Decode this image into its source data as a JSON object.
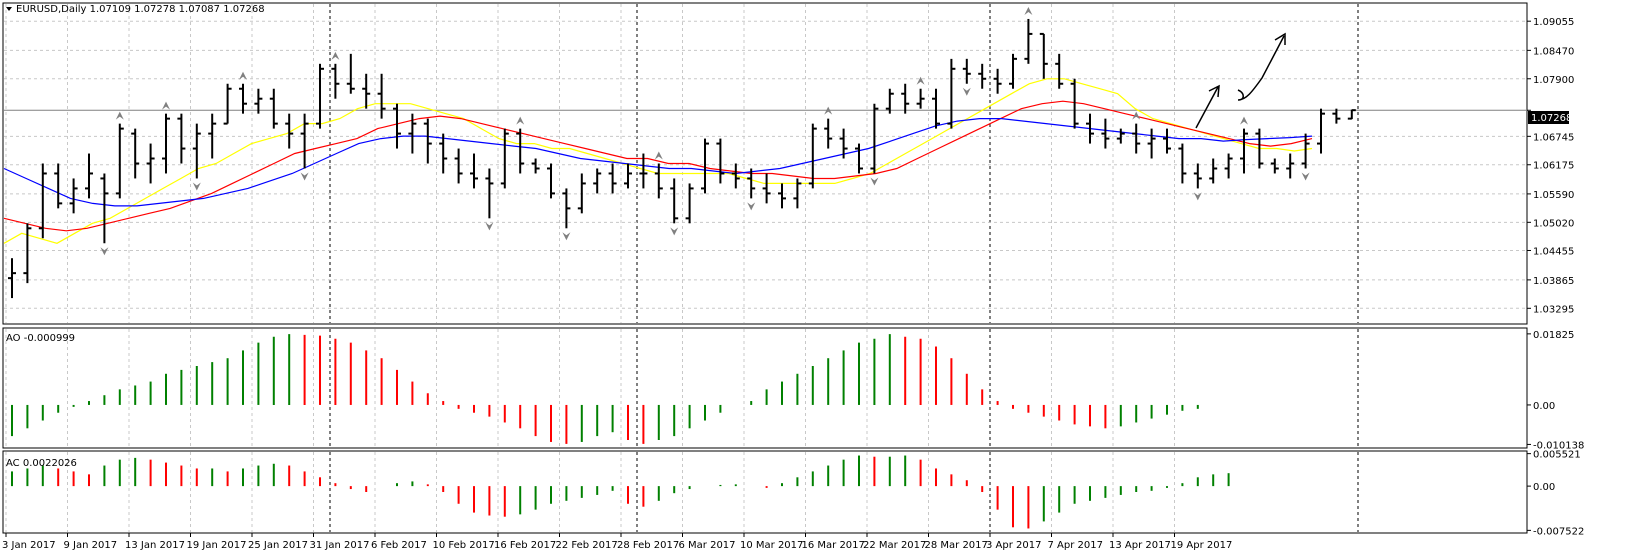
{
  "window": {
    "symbol_line": "EURUSD,Daily  1.07109 1.07278 1.07087 1.07268",
    "current_price_label": "1.07268",
    "current_price": 1.07268
  },
  "colors": {
    "background": "#ffffff",
    "grid": "#c8c8c8",
    "axis": "#000000",
    "bar_up": "#000000",
    "bar_down": "#000000",
    "osc_up": "#008000",
    "osc_down": "#ff0000",
    "ma_yellow": "#ffff00",
    "ma_red": "#ff0000",
    "ma_blue": "#0000ff",
    "fractal": "#808080",
    "price_label_bg": "#000000",
    "price_label_text": "#ffffff"
  },
  "chart_data": [
    {
      "type": "ohlc",
      "name": "price",
      "y_ticks": [
        "1.09055",
        "1.08470",
        "1.07900",
        "1.07268",
        "1.06745",
        "1.06175",
        "1.05590",
        "1.05020",
        "1.04455",
        "1.03865",
        "1.03295"
      ],
      "ylim": [
        1.03,
        1.094
      ],
      "x_labels": [
        "3 Jan 2017",
        "9 Jan 2017",
        "13 Jan 2017",
        "19 Jan 2017",
        "25 Jan 2017",
        "31 Jan 2017",
        "6 Feb 2017",
        "10 Feb 2017",
        "16 Feb 2017",
        "22 Feb 2017",
        "28 Feb 2017",
        "6 Mar 2017",
        "10 Mar 2017",
        "16 Mar 2017",
        "22 Mar 2017",
        "28 Mar 2017",
        "3 Apr 2017",
        "7 Apr 2017",
        "13 Apr 2017",
        "19 Apr 2017"
      ],
      "bars": [
        [
          1.039,
          1.043,
          1.035,
          1.04
        ],
        [
          1.04,
          1.05,
          1.038,
          1.049
        ],
        [
          1.049,
          1.062,
          1.047,
          1.06
        ],
        [
          1.06,
          1.062,
          1.053,
          1.054
        ],
        [
          1.054,
          1.059,
          1.052,
          1.057
        ],
        [
          1.057,
          1.064,
          1.055,
          1.06
        ],
        [
          1.059,
          1.06,
          1.046,
          1.056
        ],
        [
          1.056,
          1.07,
          1.055,
          1.069
        ],
        [
          1.068,
          1.069,
          1.059,
          1.062
        ],
        [
          1.062,
          1.066,
          1.058,
          1.063
        ],
        [
          1.063,
          1.072,
          1.06,
          1.071
        ],
        [
          1.071,
          1.072,
          1.062,
          1.065
        ],
        [
          1.065,
          1.07,
          1.059,
          1.068
        ],
        [
          1.068,
          1.072,
          1.063,
          1.07
        ],
        [
          1.07,
          1.078,
          1.07,
          1.077
        ],
        [
          1.077,
          1.078,
          1.072,
          1.074
        ],
        [
          1.074,
          1.077,
          1.072,
          1.075
        ],
        [
          1.075,
          1.077,
          1.069,
          1.07
        ],
        [
          1.07,
          1.072,
          1.065,
          1.068
        ],
        [
          1.068,
          1.072,
          1.061,
          1.07
        ],
        [
          1.07,
          1.082,
          1.069,
          1.081
        ],
        [
          1.081,
          1.082,
          1.075,
          1.078
        ],
        [
          1.078,
          1.084,
          1.076,
          1.077
        ],
        [
          1.077,
          1.08,
          1.073,
          1.076
        ],
        [
          1.076,
          1.08,
          1.071,
          1.073
        ],
        [
          1.073,
          1.074,
          1.065,
          1.068
        ],
        [
          1.068,
          1.072,
          1.064,
          1.07
        ],
        [
          1.07,
          1.071,
          1.062,
          1.066
        ],
        [
          1.066,
          1.068,
          1.06,
          1.063
        ],
        [
          1.063,
          1.065,
          1.058,
          1.06
        ],
        [
          1.06,
          1.064,
          1.057,
          1.059
        ],
        [
          1.059,
          1.061,
          1.051,
          1.058
        ],
        [
          1.058,
          1.069,
          1.057,
          1.068
        ],
        [
          1.068,
          1.069,
          1.06,
          1.062
        ],
        [
          1.062,
          1.063,
          1.06,
          1.061
        ],
        [
          1.061,
          1.062,
          1.055,
          1.056
        ],
        [
          1.056,
          1.057,
          1.049,
          1.053
        ],
        [
          1.053,
          1.06,
          1.052,
          1.058
        ],
        [
          1.058,
          1.061,
          1.056,
          1.06
        ],
        [
          1.06,
          1.062,
          1.056,
          1.058
        ],
        [
          1.058,
          1.062,
          1.057,
          1.06
        ],
        [
          1.06,
          1.064,
          1.057,
          1.06
        ],
        [
          1.06,
          1.062,
          1.055,
          1.057
        ],
        [
          1.057,
          1.059,
          1.05,
          1.051
        ],
        [
          1.051,
          1.058,
          1.05,
          1.057
        ],
        [
          1.057,
          1.067,
          1.056,
          1.066
        ],
        [
          1.066,
          1.067,
          1.058,
          1.06
        ],
        [
          1.06,
          1.062,
          1.057,
          1.059
        ],
        [
          1.059,
          1.061,
          1.055,
          1.057
        ],
        [
          1.057,
          1.06,
          1.054,
          1.056
        ],
        [
          1.056,
          1.058,
          1.053,
          1.055
        ],
        [
          1.055,
          1.059,
          1.053,
          1.058
        ],
        [
          1.058,
          1.07,
          1.057,
          1.069
        ],
        [
          1.069,
          1.071,
          1.065,
          1.067
        ],
        [
          1.067,
          1.069,
          1.063,
          1.065
        ],
        [
          1.065,
          1.066,
          1.06,
          1.061
        ],
        [
          1.061,
          1.074,
          1.06,
          1.073
        ],
        [
          1.073,
          1.077,
          1.072,
          1.076
        ],
        [
          1.076,
          1.078,
          1.072,
          1.074
        ],
        [
          1.074,
          1.077,
          1.073,
          1.075
        ],
        [
          1.075,
          1.077,
          1.069,
          1.07
        ],
        [
          1.07,
          1.083,
          1.069,
          1.081
        ],
        [
          1.081,
          1.083,
          1.078,
          1.08
        ],
        [
          1.08,
          1.082,
          1.077,
          1.079
        ],
        [
          1.079,
          1.081,
          1.076,
          1.078
        ],
        [
          1.078,
          1.084,
          1.077,
          1.083
        ],
        [
          1.083,
          1.091,
          1.082,
          1.088
        ],
        [
          1.088,
          1.088,
          1.079,
          1.082
        ],
        [
          1.082,
          1.084,
          1.077,
          1.078
        ],
        [
          1.078,
          1.079,
          1.069,
          1.07
        ],
        [
          1.07,
          1.072,
          1.066,
          1.068
        ],
        [
          1.068,
          1.071,
          1.065,
          1.067
        ],
        [
          1.067,
          1.069,
          1.066,
          1.068
        ],
        [
          1.068,
          1.07,
          1.064,
          1.066
        ],
        [
          1.066,
          1.069,
          1.063,
          1.067
        ],
        [
          1.067,
          1.069,
          1.064,
          1.065
        ],
        [
          1.065,
          1.066,
          1.058,
          1.06
        ],
        [
          1.06,
          1.062,
          1.057,
          1.059
        ],
        [
          1.059,
          1.063,
          1.058,
          1.061
        ],
        [
          1.061,
          1.064,
          1.059,
          1.063
        ],
        [
          1.063,
          1.069,
          1.06,
          1.068
        ],
        [
          1.068,
          1.069,
          1.061,
          1.062
        ],
        [
          1.062,
          1.063,
          1.06,
          1.061
        ],
        [
          1.061,
          1.064,
          1.059,
          1.062
        ],
        [
          1.062,
          1.068,
          1.061,
          1.066
        ],
        [
          1.066,
          1.073,
          1.064,
          1.072
        ],
        [
          1.072,
          1.073,
          1.07,
          1.071
        ],
        [
          1.071,
          1.0728,
          1.0709,
          1.0727
        ]
      ],
      "moving_averages": [
        {
          "color": "yellow",
          "values": [
            1.046,
            1.048,
            1.047,
            1.046,
            1.048,
            1.05,
            1.051,
            1.053,
            1.055,
            1.057,
            1.059,
            1.061,
            1.062,
            1.064,
            1.066,
            1.067,
            1.068,
            1.07,
            1.07,
            1.071,
            1.073,
            1.074,
            1.074,
            1.074,
            1.073,
            1.072,
            1.071,
            1.069,
            1.067,
            1.066,
            1.066,
            1.065,
            1.065,
            1.064,
            1.063,
            1.062,
            1.061,
            1.06,
            1.06,
            1.06,
            1.06,
            1.06,
            1.059,
            1.058,
            1.058,
            1.058,
            1.058,
            1.058,
            1.059,
            1.06,
            1.062,
            1.064,
            1.066,
            1.068,
            1.07,
            1.072,
            1.074,
            1.076,
            1.078,
            1.079,
            1.079,
            1.078,
            1.077,
            1.076,
            1.073,
            1.071,
            1.07,
            1.069,
            1.068,
            1.067,
            1.066,
            1.065,
            1.065,
            1.0645,
            1.065
          ]
        },
        {
          "color": "red",
          "values": [
            1.051,
            1.05,
            1.049,
            1.0485,
            1.049,
            1.05,
            1.051,
            1.052,
            1.053,
            1.0545,
            1.056,
            1.058,
            1.06,
            1.062,
            1.064,
            1.065,
            1.066,
            1.067,
            1.069,
            1.07,
            1.071,
            1.0715,
            1.071,
            1.07,
            1.069,
            1.068,
            1.067,
            1.066,
            1.065,
            1.064,
            1.063,
            1.063,
            1.062,
            1.062,
            1.061,
            1.0605,
            1.06,
            1.06,
            1.0595,
            1.059,
            1.059,
            1.0595,
            1.06,
            1.061,
            1.063,
            1.065,
            1.067,
            1.069,
            1.071,
            1.073,
            1.074,
            1.0745,
            1.074,
            1.073,
            1.072,
            1.071,
            1.07,
            1.069,
            1.068,
            1.067,
            1.066,
            1.0655,
            1.066,
            1.067
          ]
        },
        {
          "color": "blue",
          "values": [
            1.061,
            1.059,
            1.057,
            1.055,
            1.054,
            1.0535,
            1.0535,
            1.054,
            1.0545,
            1.055,
            1.056,
            1.057,
            1.0585,
            1.06,
            1.062,
            1.064,
            1.066,
            1.067,
            1.0675,
            1.0675,
            1.067,
            1.0665,
            1.066,
            1.0655,
            1.065,
            1.064,
            1.063,
            1.0625,
            1.062,
            1.0615,
            1.061,
            1.061,
            1.0605,
            1.06,
            1.0605,
            1.061,
            1.062,
            1.063,
            1.064,
            1.065,
            1.0665,
            1.068,
            1.0695,
            1.0705,
            1.071,
            1.071,
            1.0705,
            1.07,
            1.0695,
            1.069,
            1.0685,
            1.068,
            1.0675,
            1.067,
            1.067,
            1.0665,
            1.0668,
            1.067,
            1.0672,
            1.0675
          ]
        }
      ]
    },
    {
      "type": "bar",
      "name": "AO",
      "label": "AO -0.000999",
      "y_ticks": [
        "0.01825",
        "0.00",
        "-0.010138"
      ],
      "ylim": [
        -0.0108,
        0.0195
      ],
      "values": [
        -0.008,
        -0.006,
        -0.004,
        -0.002,
        -0.0005,
        0.001,
        0.0025,
        0.004,
        0.005,
        0.006,
        0.008,
        0.009,
        0.01,
        0.011,
        0.012,
        0.014,
        0.016,
        0.0175,
        0.0182,
        0.018,
        0.0178,
        0.017,
        0.016,
        0.014,
        0.012,
        0.009,
        0.006,
        0.003,
        0.001,
        -0.001,
        -0.002,
        -0.003,
        -0.0045,
        -0.006,
        -0.008,
        -0.0095,
        -0.01,
        -0.0095,
        -0.008,
        -0.007,
        -0.009,
        -0.01,
        -0.009,
        -0.008,
        -0.006,
        -0.004,
        -0.002,
        0.0,
        0.001,
        0.004,
        0.006,
        0.008,
        0.01,
        0.012,
        0.014,
        0.016,
        0.017,
        0.0182,
        0.0175,
        0.017,
        0.015,
        0.012,
        0.008,
        0.004,
        0.001,
        -0.001,
        -0.002,
        -0.003,
        -0.004,
        -0.005,
        -0.0055,
        -0.006,
        -0.0055,
        -0.0045,
        -0.0035,
        -0.0025,
        -0.0015,
        -0.001
      ]
    },
    {
      "type": "bar",
      "name": "AC",
      "label": "AC 0.0022026",
      "y_ticks": [
        "0.005521",
        "0.00",
        "-0.007522"
      ],
      "ylim": [
        -0.0078,
        0.0058
      ],
      "values": [
        0.0025,
        0.003,
        0.0035,
        0.003,
        0.0025,
        0.002,
        0.0035,
        0.0045,
        0.0048,
        0.0045,
        0.004,
        0.0035,
        0.003,
        0.003,
        0.0025,
        0.003,
        0.0035,
        0.0038,
        0.0035,
        0.0025,
        0.0015,
        0.0005,
        -0.0005,
        -0.001,
        0.0,
        0.0005,
        0.0008,
        0.0003,
        -0.001,
        -0.003,
        -0.0045,
        -0.005,
        -0.0052,
        -0.0048,
        -0.004,
        -0.003,
        -0.0025,
        -0.002,
        -0.0015,
        -0.0008,
        -0.003,
        -0.0035,
        -0.0025,
        -0.0012,
        -0.0005,
        0.0,
        0.0002,
        0.0003,
        0.0,
        -0.0003,
        0.0005,
        0.0015,
        0.0025,
        0.0035,
        0.0045,
        0.0052,
        0.005,
        0.005,
        0.0052,
        0.0045,
        0.003,
        0.002,
        0.001,
        -0.001,
        -0.004,
        -0.007,
        -0.0072,
        -0.006,
        -0.0045,
        -0.003,
        -0.0025,
        -0.002,
        -0.0015,
        -0.001,
        -0.0008,
        -0.0003,
        0.0005,
        0.0015,
        0.002,
        0.0022
      ]
    }
  ]
}
